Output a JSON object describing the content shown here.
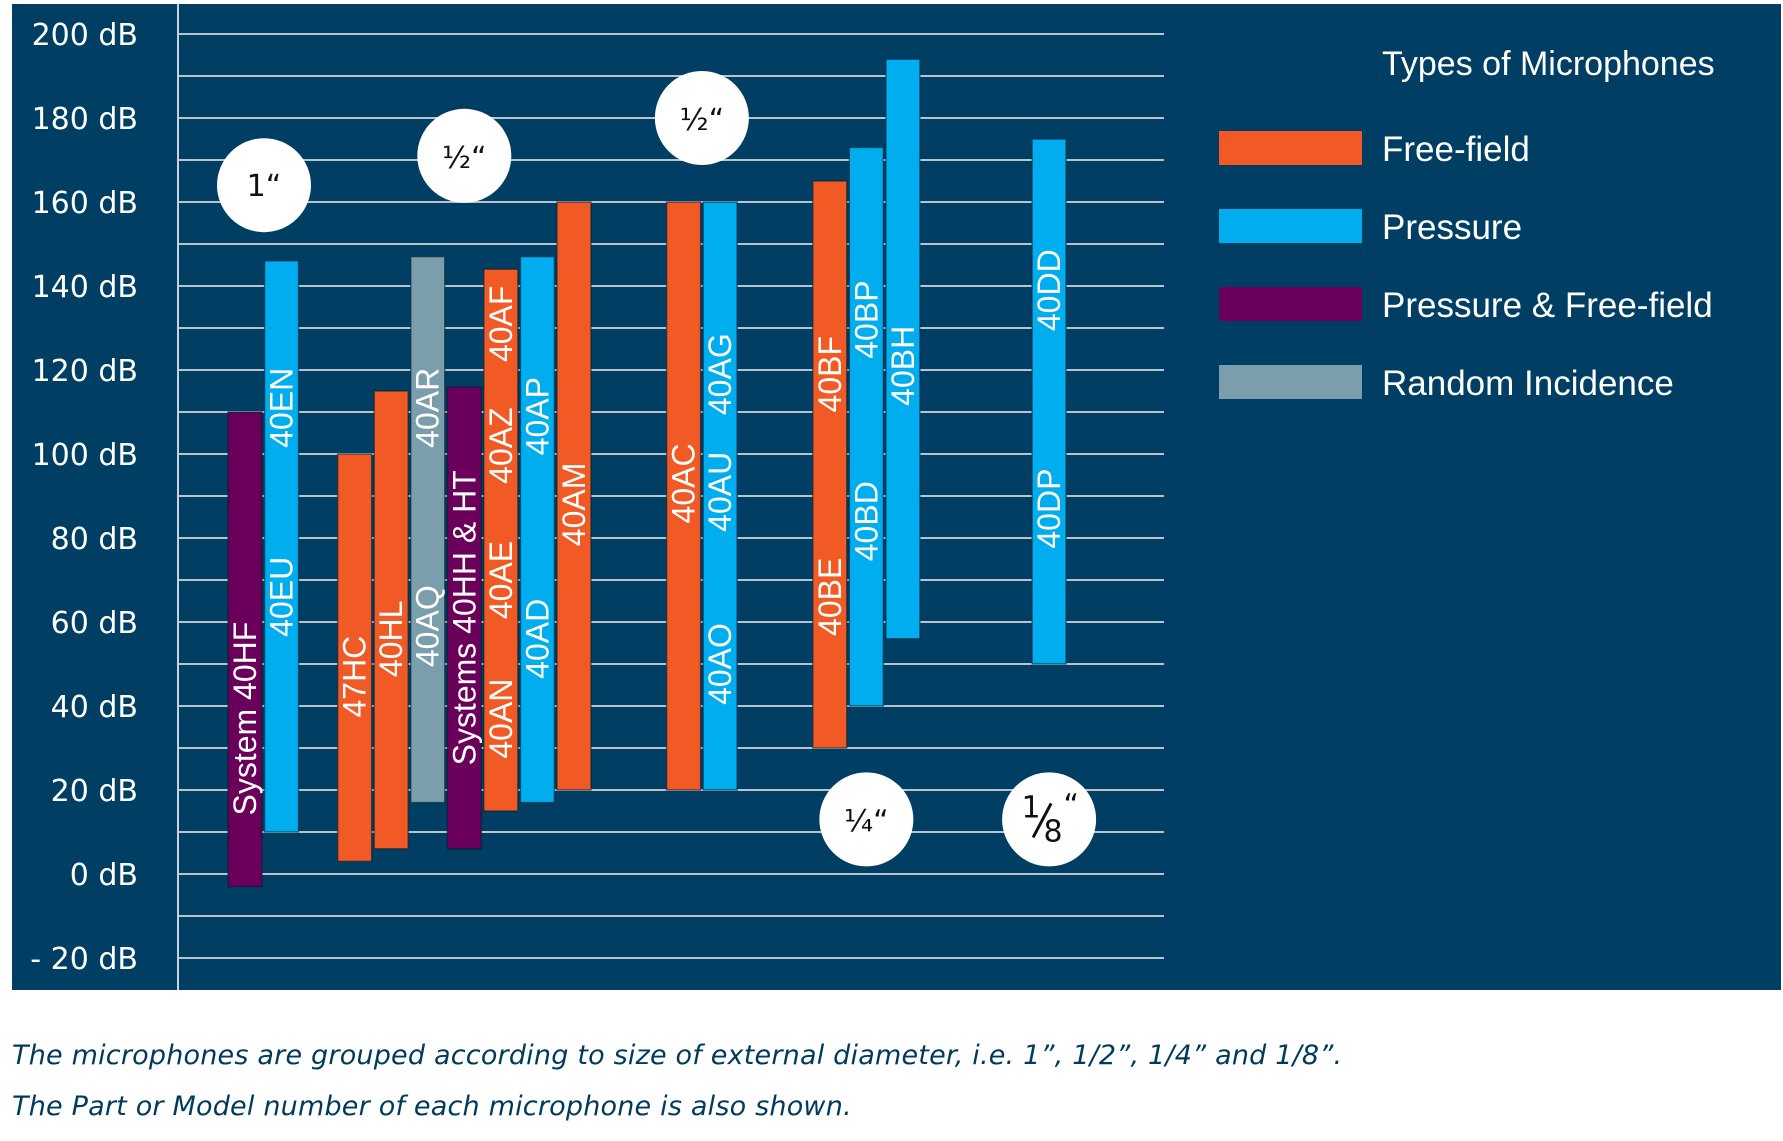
{
  "chart_data": {
    "type": "bar",
    "subtype": "floating-range",
    "title": "",
    "xlabel": "",
    "ylabel": "",
    "ylim": [
      -20,
      200
    ],
    "y_ticks": [
      200,
      180,
      160,
      140,
      120,
      100,
      80,
      60,
      40,
      20,
      0,
      -20
    ],
    "y_tick_labels": [
      "200 dB",
      "180 dB",
      "160 dB",
      "140 dB",
      "120 dB",
      "100 dB",
      "80 dB",
      "60 dB",
      "40 dB",
      "20 dB",
      "0 dB",
      "- 20 dB"
    ],
    "grid_step": 10,
    "grid": true,
    "legend": {
      "title": "Types of Microphones",
      "placement": "top-right",
      "entries": [
        {
          "key": "free-field",
          "label": "Free-field",
          "color": "#f15a24"
        },
        {
          "key": "pressure",
          "label": "Pressure",
          "color": "#00aeef"
        },
        {
          "key": "pressure-free-field",
          "label": "Pressure & Free-field",
          "color": "#6b005a"
        },
        {
          "key": "random-incidence",
          "label": "Random Incidence",
          "color": "#7a9eac"
        }
      ]
    },
    "groups": [
      {
        "badge": "1“",
        "badge_kind": "whole",
        "badge_num": "1",
        "badge_den": "",
        "badge_db": 164,
        "bars": [
          {
            "slot": 0,
            "type": "pressure-free-field",
            "low": -3,
            "high": 110,
            "labels": [
              {
                "text": "System 40HF",
                "at": 37
              }
            ]
          },
          {
            "slot": 1,
            "type": "pressure",
            "low": 10,
            "high": 146,
            "labels": [
              {
                "text": "40EU",
                "at": 66
              },
              {
                "text": "40EN",
                "at": 111
              }
            ]
          }
        ]
      },
      {
        "badge": "½“",
        "badge_kind": "fraction-inline",
        "badge_num": "1",
        "badge_den": "2",
        "badge_db": 171,
        "bars": [
          {
            "slot": 3,
            "type": "free-field",
            "low": 3,
            "high": 100,
            "labels": [
              {
                "text": "47HC",
                "at": 47
              }
            ]
          },
          {
            "slot": 4,
            "type": "free-field",
            "low": 6,
            "high": 115,
            "labels": [
              {
                "text": "40HL",
                "at": 56
              }
            ]
          },
          {
            "slot": 5,
            "type": "random-incidence",
            "low": 17,
            "high": 147,
            "labels": [
              {
                "text": "40AQ",
                "at": 59
              },
              {
                "text": "40AR",
                "at": 111
              }
            ]
          },
          {
            "slot": 6,
            "type": "pressure-free-field",
            "low": 6,
            "high": 116,
            "labels": [
              {
                "text": "Systems 40HH & HT",
                "at": 61
              }
            ]
          },
          {
            "slot": 7,
            "type": "free-field",
            "low": 15,
            "high": 144,
            "labels": [
              {
                "text": "40AN",
                "at": 37
              },
              {
                "text": "40AE",
                "at": 70
              },
              {
                "text": "40AZ",
                "at": 102
              },
              {
                "text": "40AF",
                "at": 131
              }
            ]
          },
          {
            "slot": 8,
            "type": "pressure",
            "low": 17,
            "high": 147,
            "labels": [
              {
                "text": "40AD",
                "at": 56
              },
              {
                "text": "40AP",
                "at": 109
              }
            ]
          },
          {
            "slot": 9,
            "type": "free-field",
            "low": 20,
            "high": 160,
            "labels": [
              {
                "text": "40AM",
                "at": 88
              }
            ]
          }
        ]
      },
      {
        "badge": "½“",
        "badge_kind": "fraction-inline",
        "badge_num": "1",
        "badge_den": "2",
        "badge_db": 180,
        "bars": [
          {
            "slot": 12,
            "type": "free-field",
            "low": 20,
            "high": 160,
            "labels": [
              {
                "text": "40AC",
                "at": 93
              }
            ]
          },
          {
            "slot": 13,
            "type": "pressure",
            "low": 20,
            "high": 160,
            "labels": [
              {
                "text": "40AO",
                "at": 50
              },
              {
                "text": "40AU",
                "at": 91
              },
              {
                "text": "40AG",
                "at": 119
              }
            ]
          }
        ]
      },
      {
        "badge": "¼“",
        "badge_kind": "fraction-inline",
        "badge_num": "1",
        "badge_den": "4",
        "badge_db": 13,
        "bars": [
          {
            "slot": 16,
            "type": "free-field",
            "low": 30,
            "high": 165,
            "labels": [
              {
                "text": "40BE",
                "at": 66
              },
              {
                "text": "40BF",
                "at": 119
              }
            ]
          },
          {
            "slot": 17,
            "type": "pressure",
            "low": 40,
            "high": 173,
            "labels": [
              {
                "text": "40BD",
                "at": 84
              },
              {
                "text": "40BP",
                "at": 132
              }
            ]
          },
          {
            "slot": 18,
            "type": "pressure",
            "low": 56,
            "high": 194,
            "labels": [
              {
                "text": "40BH",
                "at": 121
              }
            ]
          }
        ]
      },
      {
        "badge": "⅛“",
        "badge_kind": "fraction-stacked",
        "badge_num": "1",
        "badge_den": "8",
        "badge_db": 13,
        "bars": [
          {
            "slot": 22,
            "type": "pressure",
            "low": 50,
            "high": 175,
            "labels": [
              {
                "text": "40DP",
                "at": 87
              },
              {
                "text": "40DD",
                "at": 139
              }
            ]
          }
        ]
      }
    ],
    "caption": [
      "The microphones are grouped according to size of external diameter, i.e. 1”, 1/2”, 1/4” and 1/8”.",
      "The Part or Model number of each microphone is also shown."
    ]
  },
  "colors": {
    "panel_background": "#003f63",
    "caption_text": "#003a5c"
  }
}
